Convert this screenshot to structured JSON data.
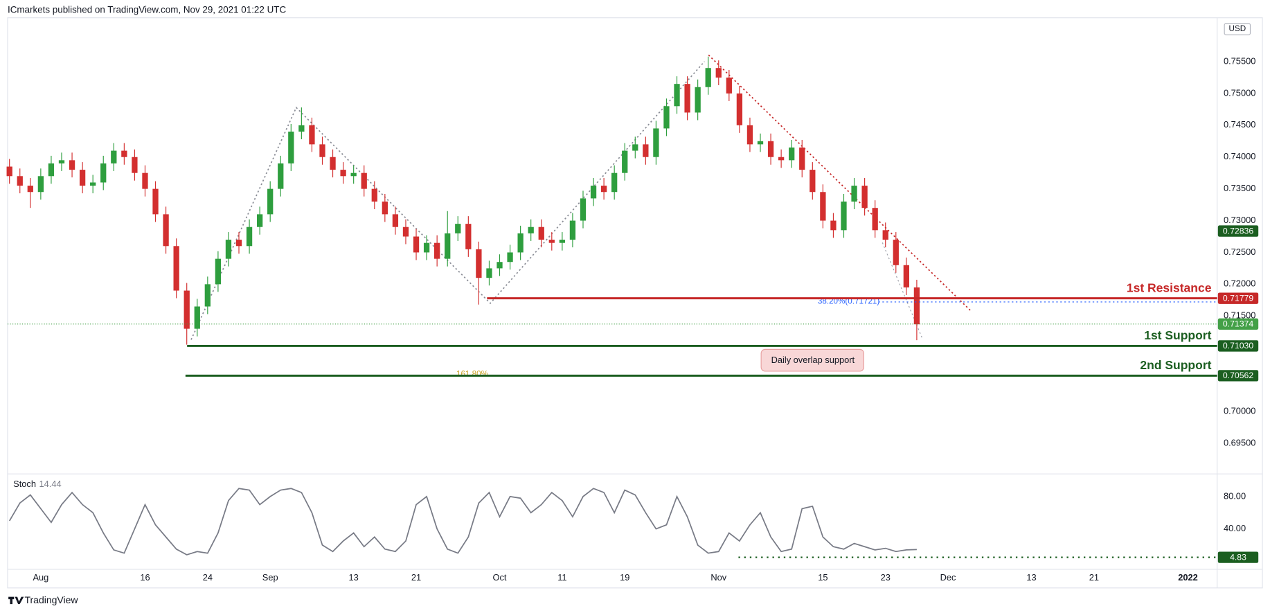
{
  "header": "ICmarkets published on TradingView.com, Nov 29, 2021 01:22 UTC",
  "footer": "TradingView",
  "chart_data": [
    {
      "type": "candlestick",
      "currency": "USD",
      "colors": {
        "up": "#2e9e3e",
        "down": "#d32f2f"
      },
      "open": [
        0.7385,
        0.737,
        0.7355,
        0.7345,
        0.737,
        0.739,
        0.7395,
        0.738,
        0.7355,
        0.736,
        0.739,
        0.741,
        0.74,
        0.7375,
        0.735,
        0.731,
        0.726,
        0.719,
        0.713,
        0.7165,
        0.72,
        0.724,
        0.727,
        0.726,
        0.729,
        0.731,
        0.735,
        0.739,
        0.744,
        0.745,
        0.742,
        0.74,
        0.738,
        0.737,
        0.7375,
        0.735,
        0.733,
        0.731,
        0.729,
        0.7275,
        0.725,
        0.7265,
        0.724,
        0.728,
        0.7295,
        0.7255,
        0.721,
        0.7225,
        0.7235,
        0.725,
        0.728,
        0.729,
        0.727,
        0.7265,
        0.727,
        0.73,
        0.7335,
        0.7355,
        0.7345,
        0.7375,
        0.741,
        0.742,
        0.74,
        0.7445,
        0.748,
        0.7515,
        0.747,
        0.751,
        0.754,
        0.7525,
        0.75,
        0.745,
        0.742,
        0.7425,
        0.74,
        0.7395,
        0.7415,
        0.738,
        0.7345,
        0.73,
        0.7285,
        0.733,
        0.7355,
        0.732,
        0.7285,
        0.727,
        0.723,
        0.7195
      ],
      "high": [
        0.7397,
        0.7382,
        0.7367,
        0.7382,
        0.7402,
        0.7407,
        0.7407,
        0.7392,
        0.7372,
        0.7402,
        0.7422,
        0.7422,
        0.7412,
        0.7387,
        0.7362,
        0.7322,
        0.7272,
        0.7202,
        0.7177,
        0.7212,
        0.7252,
        0.7282,
        0.7282,
        0.7302,
        0.7322,
        0.7362,
        0.7402,
        0.7452,
        0.7478,
        0.7462,
        0.7432,
        0.7412,
        0.7392,
        0.7387,
        0.7387,
        0.7362,
        0.7342,
        0.7322,
        0.7302,
        0.7287,
        0.7277,
        0.7277,
        0.7315,
        0.7307,
        0.7307,
        0.7267,
        0.7237,
        0.7247,
        0.7262,
        0.7292,
        0.7302,
        0.7302,
        0.7282,
        0.7282,
        0.7312,
        0.7347,
        0.7367,
        0.7367,
        0.7387,
        0.7422,
        0.7432,
        0.7432,
        0.7457,
        0.7492,
        0.7527,
        0.7527,
        0.7522,
        0.7558,
        0.7552,
        0.7537,
        0.7512,
        0.7462,
        0.7437,
        0.7437,
        0.7412,
        0.7427,
        0.7427,
        0.7392,
        0.7357,
        0.7312,
        0.7342,
        0.7367,
        0.7367,
        0.7332,
        0.7297,
        0.7282,
        0.7242,
        0.7207
      ],
      "low": [
        0.7358,
        0.7343,
        0.732,
        0.7333,
        0.7358,
        0.7378,
        0.7368,
        0.7343,
        0.7343,
        0.7348,
        0.7378,
        0.7388,
        0.7363,
        0.7338,
        0.7298,
        0.7248,
        0.7178,
        0.7105,
        0.7118,
        0.7153,
        0.7188,
        0.7228,
        0.7248,
        0.7248,
        0.7278,
        0.7298,
        0.7338,
        0.7378,
        0.7428,
        0.7408,
        0.7388,
        0.7368,
        0.7358,
        0.7358,
        0.7338,
        0.7318,
        0.7298,
        0.7278,
        0.7263,
        0.7238,
        0.7238,
        0.7228,
        0.7228,
        0.7268,
        0.7243,
        0.7168,
        0.7198,
        0.7213,
        0.7223,
        0.7238,
        0.7268,
        0.7258,
        0.7253,
        0.7253,
        0.7258,
        0.7288,
        0.7323,
        0.7333,
        0.7333,
        0.7363,
        0.7398,
        0.7388,
        0.7388,
        0.7433,
        0.7468,
        0.7458,
        0.7458,
        0.7498,
        0.7513,
        0.7488,
        0.7438,
        0.7408,
        0.7408,
        0.7388,
        0.7383,
        0.7383,
        0.7368,
        0.7333,
        0.7288,
        0.7273,
        0.7273,
        0.7318,
        0.7308,
        0.7273,
        0.7258,
        0.7218,
        0.7183,
        0.7112
      ],
      "close": [
        0.737,
        0.7355,
        0.7345,
        0.737,
        0.739,
        0.7395,
        0.738,
        0.7355,
        0.736,
        0.739,
        0.741,
        0.74,
        0.7375,
        0.735,
        0.731,
        0.726,
        0.719,
        0.713,
        0.7165,
        0.72,
        0.724,
        0.727,
        0.726,
        0.729,
        0.731,
        0.735,
        0.739,
        0.744,
        0.745,
        0.742,
        0.74,
        0.738,
        0.737,
        0.7375,
        0.735,
        0.733,
        0.731,
        0.729,
        0.7275,
        0.725,
        0.7265,
        0.724,
        0.728,
        0.7295,
        0.7255,
        0.721,
        0.7225,
        0.7235,
        0.725,
        0.728,
        0.729,
        0.727,
        0.7265,
        0.727,
        0.73,
        0.7335,
        0.7355,
        0.7345,
        0.7375,
        0.741,
        0.742,
        0.74,
        0.7445,
        0.748,
        0.7515,
        0.747,
        0.751,
        0.754,
        0.7525,
        0.75,
        0.745,
        0.742,
        0.7425,
        0.74,
        0.7395,
        0.7415,
        0.738,
        0.7345,
        0.73,
        0.7285,
        0.733,
        0.7355,
        0.732,
        0.7285,
        0.727,
        0.723,
        0.7195,
        0.7137
      ],
      "xlim": [
        -0.18,
        115.8
      ],
      "xticks": [
        {
          "value": 3,
          "label": "Aug"
        },
        {
          "value": 13,
          "label": "16"
        },
        {
          "value": 19,
          "label": "24"
        },
        {
          "value": 25,
          "label": "Sep"
        },
        {
          "value": 33,
          "label": "13"
        },
        {
          "value": 39,
          "label": "21"
        },
        {
          "value": 47,
          "label": "Oct"
        },
        {
          "value": 53,
          "label": "11"
        },
        {
          "value": 59,
          "label": "19"
        },
        {
          "value": 68,
          "label": "Nov"
        },
        {
          "value": 78,
          "label": "15"
        },
        {
          "value": 84,
          "label": "23"
        },
        {
          "value": 90,
          "label": "Dec"
        },
        {
          "value": 98,
          "label": "13"
        },
        {
          "value": 104,
          "label": "21"
        },
        {
          "value": 113,
          "label": "2022"
        }
      ],
      "ylim": [
        0.6903,
        0.7619
      ],
      "yticks": [
        {
          "value": 0.755,
          "label": "0.75500"
        },
        {
          "value": 0.75,
          "label": "0.75000"
        },
        {
          "value": 0.745,
          "label": "0.74500"
        },
        {
          "value": 0.74,
          "label": "0.74000"
        },
        {
          "value": 0.735,
          "label": "0.73500"
        },
        {
          "value": 0.73,
          "label": "0.73000"
        },
        {
          "value": 0.725,
          "label": "0.72500"
        },
        {
          "value": 0.72,
          "label": "0.72000"
        },
        {
          "value": 0.715,
          "label": "0.71500"
        },
        {
          "value": 0.7,
          "label": "0.70000"
        },
        {
          "value": 0.695,
          "label": "0.69500"
        }
      ],
      "levels": [
        {
          "name": "1st Resistance",
          "value": 0.71779,
          "color": "#c62828"
        },
        {
          "name": "1st Support",
          "value": 0.7103,
          "value_label": "0.71030",
          "color": "#1b5e20"
        },
        {
          "name": "2nd Support",
          "value": 0.70562,
          "color": "#1b5e20"
        }
      ],
      "price_labels": [
        {
          "value": 0.72836,
          "color": "#1b5e20"
        },
        {
          "value": 0.71374,
          "color": "#43a047"
        }
      ],
      "annotations": [
        {
          "text": "38.20%(0.71721)",
          "value": 0.71721
        },
        {
          "text": "161.80%"
        },
        {
          "text": "Daily overlap support"
        }
      ]
    },
    {
      "type": "line",
      "ylim": [
        -9,
        106
      ],
      "yticks": [
        {
          "value": 80,
          "label": "80.00"
        },
        {
          "value": 40,
          "label": "40.00"
        }
      ],
      "series": [
        {
          "name": "Stoch",
          "color": "#787b86",
          "value_label": "14.44",
          "values": [
            50,
            72,
            82,
            65,
            48,
            70,
            85,
            70,
            60,
            35,
            14,
            10,
            40,
            70,
            45,
            30,
            15,
            8,
            12,
            10,
            35,
            75,
            90,
            88,
            70,
            80,
            88,
            90,
            85,
            60,
            20,
            12,
            25,
            35,
            18,
            30,
            15,
            12,
            25,
            70,
            80,
            40,
            15,
            10,
            30,
            72,
            85,
            55,
            80,
            78,
            60,
            70,
            85,
            75,
            55,
            80,
            90,
            85,
            60,
            88,
            82,
            60,
            40,
            45,
            80,
            55,
            20,
            10,
            12,
            35,
            25,
            45,
            60,
            30,
            12,
            15,
            65,
            68,
            30,
            18,
            15,
            22,
            18,
            14,
            16,
            12,
            14,
            14.44
          ]
        }
      ],
      "level": {
        "value": 4.83,
        "color": "#1b5e20"
      }
    }
  ]
}
